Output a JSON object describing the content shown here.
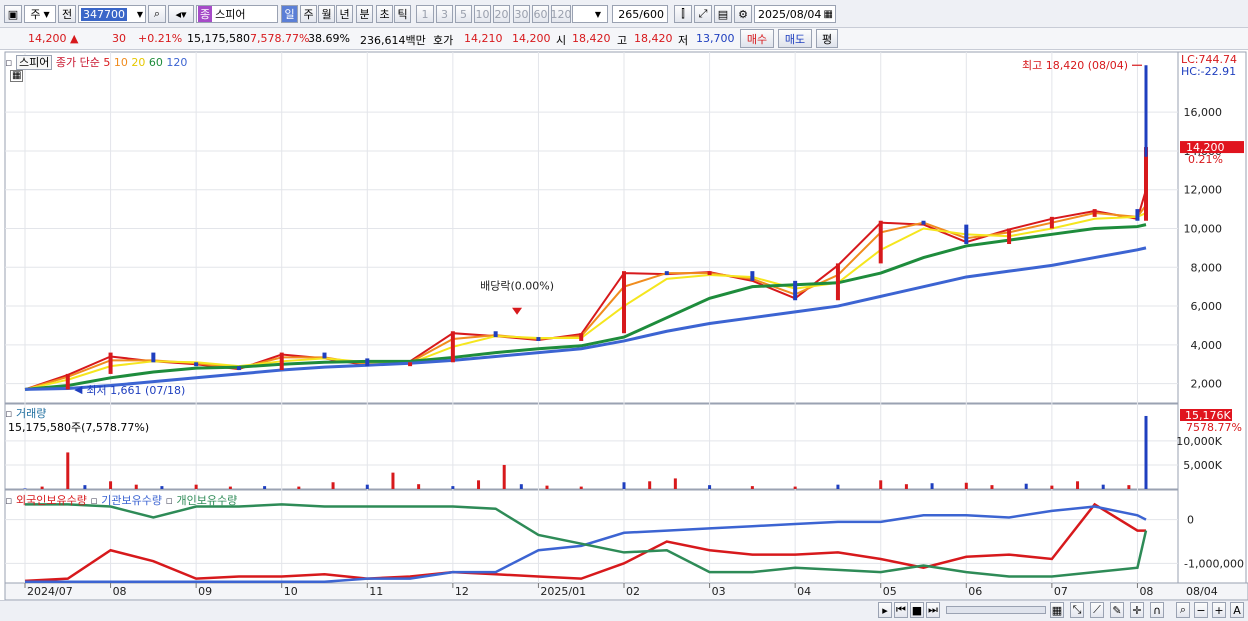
{
  "toolbar": {
    "market_mode": "주",
    "prev_label": "전",
    "code": "347700",
    "type_badge": "종",
    "stock_name": "스피어",
    "periods": [
      "일",
      "주",
      "월",
      "년",
      "분",
      "초",
      "틱"
    ],
    "intervals": [
      "1",
      "3",
      "5",
      "10",
      "20",
      "30",
      "60",
      "120"
    ],
    "count_current": "265",
    "count_total": "/600",
    "date": "2025/08/04"
  },
  "quote": {
    "price": "14,200",
    "change": "30",
    "change_pct": "+0.21%",
    "volume": "15,175,580",
    "volume_ratio": "7,578.77%",
    "turnover_ratio": "38.69%",
    "amount": "236,614백만",
    "bid_label": "호가",
    "bid1": "14,210",
    "bid2": "14,200",
    "open_label": "시",
    "open": "18,420",
    "high_label": "고",
    "high": "18,420",
    "low_label": "저",
    "low": "13,700",
    "buy_label": "매수",
    "sell_label": "매도",
    "eval_label": "평"
  },
  "colors": {
    "up": "#d7191c",
    "down": "#1f3fbf",
    "ma5": "#d7191c",
    "ma10": "#f08c1e",
    "ma20": "#f5e61e",
    "ma60": "#1e8c3c",
    "ma120": "#3c64d2",
    "foreign": "#d7191c",
    "institution": "#3c64d2",
    "individual": "#2e8b57"
  },
  "chart_data": [
    {
      "type": "line",
      "panel": "price",
      "title": "스피어",
      "legend": [
        "종가 단순",
        "5",
        "10",
        "20",
        "60",
        "120"
      ],
      "legend_series": [
        "MA5",
        "MA10",
        "MA20",
        "MA60",
        "MA120"
      ],
      "ylim": [
        1000,
        19000
      ],
      "yticks": [
        "2,000",
        "4,000",
        "6,000",
        "8,000",
        "10,000",
        "12,000",
        "14,000",
        "16,000"
      ],
      "ytick_values": [
        2000,
        4000,
        6000,
        8000,
        10000,
        12000,
        14000,
        16000
      ],
      "x_labels": [
        "2024/07",
        "08",
        "09",
        "10",
        "11",
        "12",
        "2025/01",
        "02",
        "03",
        "04",
        "05",
        "06",
        "07",
        "08",
        "08/04"
      ],
      "x_label_months": [
        0,
        1,
        2,
        3,
        4,
        5,
        6,
        7,
        8,
        9,
        10,
        11,
        12,
        13
      ],
      "x_months": [
        0,
        0.5,
        1,
        1.5,
        2,
        2.5,
        3,
        3.5,
        4,
        4.5,
        5,
        5.5,
        6,
        6.5,
        7,
        7.5,
        8,
        8.5,
        9,
        9.5,
        10,
        10.5,
        11,
        11.5,
        12,
        12.5,
        13,
        13.1
      ],
      "close": [
        1700,
        2500,
        3600,
        3100,
        2900,
        2700,
        3600,
        3300,
        2900,
        3100,
        4700,
        4400,
        4200,
        4600,
        7800,
        7600,
        7800,
        7300,
        6300,
        8200,
        10400,
        10200,
        9200,
        10000,
        10600,
        11000,
        10400,
        14200
      ],
      "series": [
        {
          "name": "MA5",
          "values": [
            1700,
            2450,
            3400,
            3150,
            3000,
            2750,
            3500,
            3300,
            2950,
            3150,
            4600,
            4450,
            4250,
            4550,
            7700,
            7650,
            7750,
            7300,
            6400,
            8100,
            10300,
            10200,
            9300,
            9950,
            10500,
            10900,
            10500,
            12000
          ]
        },
        {
          "name": "MA10",
          "values": [
            1700,
            2350,
            3200,
            3200,
            3050,
            2800,
            3350,
            3350,
            3000,
            3100,
            4300,
            4500,
            4300,
            4450,
            7000,
            7700,
            7700,
            7400,
            6600,
            7600,
            9800,
            10300,
            9500,
            9800,
            10300,
            10800,
            10600,
            11200
          ]
        },
        {
          "name": "MA20",
          "values": [
            1700,
            2200,
            2900,
            3150,
            3100,
            2900,
            3150,
            3300,
            3100,
            3050,
            3900,
            4450,
            4350,
            4350,
            6000,
            7400,
            7600,
            7500,
            6900,
            7200,
            8900,
            10000,
            9700,
            9600,
            10000,
            10500,
            10600,
            10800
          ]
        },
        {
          "name": "MA60",
          "values": [
            1700,
            1900,
            2300,
            2600,
            2800,
            2850,
            3000,
            3100,
            3150,
            3150,
            3350,
            3600,
            3800,
            3950,
            4400,
            5400,
            6400,
            7000,
            7100,
            7200,
            7700,
            8500,
            9100,
            9400,
            9700,
            10000,
            10100,
            10200
          ]
        },
        {
          "name": "MA120",
          "values": [
            1700,
            1750,
            1900,
            2100,
            2300,
            2500,
            2700,
            2850,
            2950,
            3050,
            3200,
            3400,
            3600,
            3800,
            4200,
            4700,
            5100,
            5400,
            5700,
            6000,
            6500,
            7000,
            7500,
            7800,
            8100,
            8500,
            8900,
            9000
          ]
        }
      ],
      "annotations": [
        {
          "text": "최고 18,420 (08/04)",
          "x": 13.1,
          "y": 18420
        },
        {
          "text": "최저 1,661 (07/18)",
          "x": 0.6,
          "y": 1661
        },
        {
          "text": "배당락(0.00%)",
          "x": 5.75,
          "y": 5400
        }
      ],
      "price_tag": "14,200",
      "pct_tag": "0.21%",
      "lc": "LC:744.74",
      "hc": "HC:-22.91"
    },
    {
      "type": "bar",
      "panel": "volume",
      "title": "거래량",
      "subtitle": "15,175,580주(7,578.77%)",
      "ylim": [
        0,
        16000
      ],
      "yticks": [
        "5,000K",
        "10,000K"
      ],
      "ytick_values": [
        5000,
        10000
      ],
      "x_months": [
        0,
        0.2,
        0.5,
        0.7,
        1,
        1.3,
        1.6,
        2,
        2.4,
        2.8,
        3.2,
        3.6,
        4,
        4.3,
        4.6,
        5,
        5.3,
        5.6,
        5.8,
        6.1,
        6.5,
        7,
        7.3,
        7.6,
        8,
        8.5,
        9,
        9.5,
        10,
        10.3,
        10.6,
        11,
        11.3,
        11.7,
        12,
        12.3,
        12.6,
        12.9,
        13.1
      ],
      "values": [
        120,
        500,
        7600,
        800,
        1600,
        900,
        600,
        900,
        500,
        600,
        500,
        1400,
        900,
        3400,
        1000,
        600,
        1800,
        5000,
        1000,
        700,
        500,
        1400,
        1600,
        2200,
        800,
        600,
        500,
        900,
        1800,
        1000,
        1200,
        1300,
        800,
        1100,
        700,
        1600,
        900,
        800,
        15176
      ],
      "volume_tag": "15,176K",
      "volume_pct_tag": "7578.77%"
    },
    {
      "type": "line",
      "panel": "holdings",
      "legend": [
        "외국인보유수량",
        "기관보유수량",
        "개인보유수량"
      ],
      "ylim": [
        -1450000,
        450000
      ],
      "yticks": [
        "0",
        "-1,000,000"
      ],
      "ytick_values": [
        0,
        -1000000
      ],
      "x_months": [
        0,
        0.5,
        1,
        1.5,
        2,
        2.5,
        3,
        3.5,
        4,
        4.5,
        5,
        5.5,
        6,
        6.5,
        7,
        7.5,
        8,
        8.5,
        9,
        9.5,
        10,
        10.5,
        11,
        11.5,
        12,
        12.5,
        13,
        13.1
      ],
      "series": [
        {
          "name": "외국인보유수량",
          "values": [
            -1400000,
            -1350000,
            -700000,
            -950000,
            -1350000,
            -1300000,
            -1300000,
            -1250000,
            -1350000,
            -1300000,
            -1200000,
            -1250000,
            -1300000,
            -1350000,
            -1000000,
            -500000,
            -700000,
            -800000,
            -800000,
            -750000,
            -900000,
            -1100000,
            -850000,
            -800000,
            -900000,
            350000,
            -250000,
            -250000
          ]
        },
        {
          "name": "기관보유수량",
          "values": [
            -1420000,
            -1420000,
            -1420000,
            -1420000,
            -1420000,
            -1420000,
            -1420000,
            -1420000,
            -1350000,
            -1350000,
            -1200000,
            -1200000,
            -700000,
            -600000,
            -300000,
            -250000,
            -200000,
            -150000,
            -100000,
            -50000,
            -50000,
            100000,
            100000,
            50000,
            200000,
            300000,
            100000,
            0
          ]
        },
        {
          "name": "개인보유수량",
          "values": [
            350000,
            350000,
            300000,
            50000,
            300000,
            300000,
            350000,
            300000,
            300000,
            300000,
            300000,
            250000,
            -350000,
            -550000,
            -750000,
            -700000,
            -1200000,
            -1200000,
            -1100000,
            -1150000,
            -1200000,
            -1050000,
            -1200000,
            -1300000,
            -1300000,
            -1200000,
            -1100000,
            -250000
          ]
        }
      ]
    }
  ]
}
